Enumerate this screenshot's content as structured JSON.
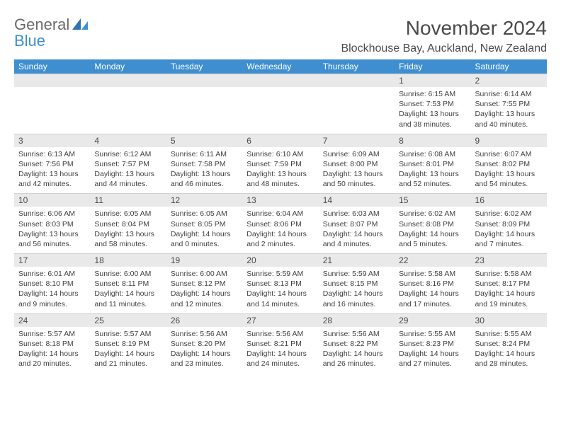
{
  "logo": {
    "general": "General",
    "blue": "Blue"
  },
  "title": "November 2024",
  "subtitle": "Blockhouse Bay, Auckland, New Zealand",
  "colors": {
    "header_bg": "#3f8fd0",
    "header_text": "#ffffff",
    "daynum_bg": "#e9e9e9",
    "body_bg": "#ffffff",
    "text": "#3a3a3a",
    "logo_general": "#6a6a6a",
    "logo_blue": "#3f8fd0"
  },
  "day_headers": [
    "Sunday",
    "Monday",
    "Tuesday",
    "Wednesday",
    "Thursday",
    "Friday",
    "Saturday"
  ],
  "weeks": [
    [
      {
        "n": "",
        "sr": "",
        "ss": "",
        "dl1": "",
        "dl2": ""
      },
      {
        "n": "",
        "sr": "",
        "ss": "",
        "dl1": "",
        "dl2": ""
      },
      {
        "n": "",
        "sr": "",
        "ss": "",
        "dl1": "",
        "dl2": ""
      },
      {
        "n": "",
        "sr": "",
        "ss": "",
        "dl1": "",
        "dl2": ""
      },
      {
        "n": "",
        "sr": "",
        "ss": "",
        "dl1": "",
        "dl2": ""
      },
      {
        "n": "1",
        "sr": "Sunrise: 6:15 AM",
        "ss": "Sunset: 7:53 PM",
        "dl1": "Daylight: 13 hours",
        "dl2": "and 38 minutes."
      },
      {
        "n": "2",
        "sr": "Sunrise: 6:14 AM",
        "ss": "Sunset: 7:55 PM",
        "dl1": "Daylight: 13 hours",
        "dl2": "and 40 minutes."
      }
    ],
    [
      {
        "n": "3",
        "sr": "Sunrise: 6:13 AM",
        "ss": "Sunset: 7:56 PM",
        "dl1": "Daylight: 13 hours",
        "dl2": "and 42 minutes."
      },
      {
        "n": "4",
        "sr": "Sunrise: 6:12 AM",
        "ss": "Sunset: 7:57 PM",
        "dl1": "Daylight: 13 hours",
        "dl2": "and 44 minutes."
      },
      {
        "n": "5",
        "sr": "Sunrise: 6:11 AM",
        "ss": "Sunset: 7:58 PM",
        "dl1": "Daylight: 13 hours",
        "dl2": "and 46 minutes."
      },
      {
        "n": "6",
        "sr": "Sunrise: 6:10 AM",
        "ss": "Sunset: 7:59 PM",
        "dl1": "Daylight: 13 hours",
        "dl2": "and 48 minutes."
      },
      {
        "n": "7",
        "sr": "Sunrise: 6:09 AM",
        "ss": "Sunset: 8:00 PM",
        "dl1": "Daylight: 13 hours",
        "dl2": "and 50 minutes."
      },
      {
        "n": "8",
        "sr": "Sunrise: 6:08 AM",
        "ss": "Sunset: 8:01 PM",
        "dl1": "Daylight: 13 hours",
        "dl2": "and 52 minutes."
      },
      {
        "n": "9",
        "sr": "Sunrise: 6:07 AM",
        "ss": "Sunset: 8:02 PM",
        "dl1": "Daylight: 13 hours",
        "dl2": "and 54 minutes."
      }
    ],
    [
      {
        "n": "10",
        "sr": "Sunrise: 6:06 AM",
        "ss": "Sunset: 8:03 PM",
        "dl1": "Daylight: 13 hours",
        "dl2": "and 56 minutes."
      },
      {
        "n": "11",
        "sr": "Sunrise: 6:05 AM",
        "ss": "Sunset: 8:04 PM",
        "dl1": "Daylight: 13 hours",
        "dl2": "and 58 minutes."
      },
      {
        "n": "12",
        "sr": "Sunrise: 6:05 AM",
        "ss": "Sunset: 8:05 PM",
        "dl1": "Daylight: 14 hours",
        "dl2": "and 0 minutes."
      },
      {
        "n": "13",
        "sr": "Sunrise: 6:04 AM",
        "ss": "Sunset: 8:06 PM",
        "dl1": "Daylight: 14 hours",
        "dl2": "and 2 minutes."
      },
      {
        "n": "14",
        "sr": "Sunrise: 6:03 AM",
        "ss": "Sunset: 8:07 PM",
        "dl1": "Daylight: 14 hours",
        "dl2": "and 4 minutes."
      },
      {
        "n": "15",
        "sr": "Sunrise: 6:02 AM",
        "ss": "Sunset: 8:08 PM",
        "dl1": "Daylight: 14 hours",
        "dl2": "and 5 minutes."
      },
      {
        "n": "16",
        "sr": "Sunrise: 6:02 AM",
        "ss": "Sunset: 8:09 PM",
        "dl1": "Daylight: 14 hours",
        "dl2": "and 7 minutes."
      }
    ],
    [
      {
        "n": "17",
        "sr": "Sunrise: 6:01 AM",
        "ss": "Sunset: 8:10 PM",
        "dl1": "Daylight: 14 hours",
        "dl2": "and 9 minutes."
      },
      {
        "n": "18",
        "sr": "Sunrise: 6:00 AM",
        "ss": "Sunset: 8:11 PM",
        "dl1": "Daylight: 14 hours",
        "dl2": "and 11 minutes."
      },
      {
        "n": "19",
        "sr": "Sunrise: 6:00 AM",
        "ss": "Sunset: 8:12 PM",
        "dl1": "Daylight: 14 hours",
        "dl2": "and 12 minutes."
      },
      {
        "n": "20",
        "sr": "Sunrise: 5:59 AM",
        "ss": "Sunset: 8:13 PM",
        "dl1": "Daylight: 14 hours",
        "dl2": "and 14 minutes."
      },
      {
        "n": "21",
        "sr": "Sunrise: 5:59 AM",
        "ss": "Sunset: 8:15 PM",
        "dl1": "Daylight: 14 hours",
        "dl2": "and 16 minutes."
      },
      {
        "n": "22",
        "sr": "Sunrise: 5:58 AM",
        "ss": "Sunset: 8:16 PM",
        "dl1": "Daylight: 14 hours",
        "dl2": "and 17 minutes."
      },
      {
        "n": "23",
        "sr": "Sunrise: 5:58 AM",
        "ss": "Sunset: 8:17 PM",
        "dl1": "Daylight: 14 hours",
        "dl2": "and 19 minutes."
      }
    ],
    [
      {
        "n": "24",
        "sr": "Sunrise: 5:57 AM",
        "ss": "Sunset: 8:18 PM",
        "dl1": "Daylight: 14 hours",
        "dl2": "and 20 minutes."
      },
      {
        "n": "25",
        "sr": "Sunrise: 5:57 AM",
        "ss": "Sunset: 8:19 PM",
        "dl1": "Daylight: 14 hours",
        "dl2": "and 21 minutes."
      },
      {
        "n": "26",
        "sr": "Sunrise: 5:56 AM",
        "ss": "Sunset: 8:20 PM",
        "dl1": "Daylight: 14 hours",
        "dl2": "and 23 minutes."
      },
      {
        "n": "27",
        "sr": "Sunrise: 5:56 AM",
        "ss": "Sunset: 8:21 PM",
        "dl1": "Daylight: 14 hours",
        "dl2": "and 24 minutes."
      },
      {
        "n": "28",
        "sr": "Sunrise: 5:56 AM",
        "ss": "Sunset: 8:22 PM",
        "dl1": "Daylight: 14 hours",
        "dl2": "and 26 minutes."
      },
      {
        "n": "29",
        "sr": "Sunrise: 5:55 AM",
        "ss": "Sunset: 8:23 PM",
        "dl1": "Daylight: 14 hours",
        "dl2": "and 27 minutes."
      },
      {
        "n": "30",
        "sr": "Sunrise: 5:55 AM",
        "ss": "Sunset: 8:24 PM",
        "dl1": "Daylight: 14 hours",
        "dl2": "and 28 minutes."
      }
    ]
  ]
}
